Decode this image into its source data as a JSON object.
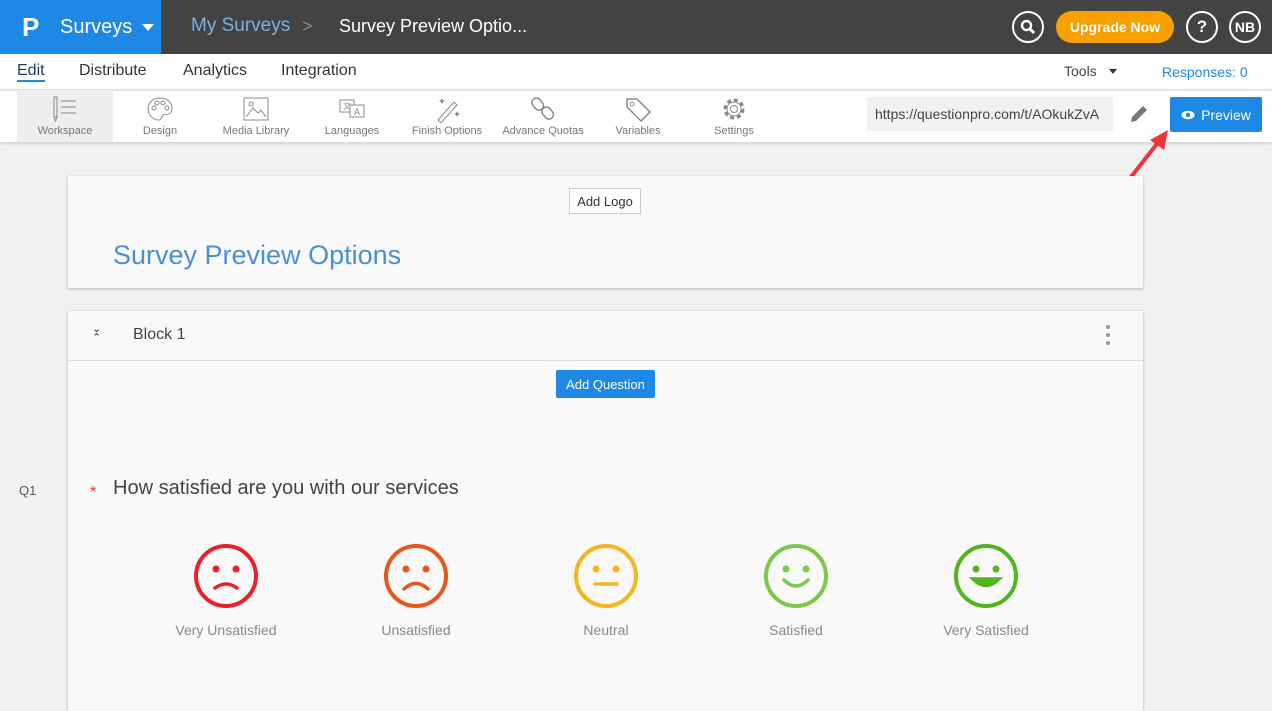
{
  "header": {
    "logo": "P",
    "app": "Surveys",
    "breadcrumb": [
      "My Surveys",
      "Survey Preview Optio..."
    ],
    "upgrade": "Upgrade Now",
    "help": "?",
    "avatar": "NB"
  },
  "nav": {
    "tabs": [
      "Edit",
      "Distribute",
      "Analytics",
      "Integration"
    ],
    "active": "Edit",
    "tools": "Tools",
    "responses": "Responses: 0"
  },
  "toolbar": {
    "items": [
      {
        "label": "Workspace",
        "icon": "workspace-icon"
      },
      {
        "label": "Design",
        "icon": "palette-icon"
      },
      {
        "label": "Media Library",
        "icon": "image-icon"
      },
      {
        "label": "Languages",
        "icon": "translate-icon"
      },
      {
        "label": "Finish Options",
        "icon": "magic-wand-icon"
      },
      {
        "label": "Advance Quotas",
        "icon": "link-icon"
      },
      {
        "label": "Variables",
        "icon": "tag-icon"
      },
      {
        "label": "Settings",
        "icon": "gear-icon"
      }
    ],
    "url": "https://questionpro.com/t/AOkukZvA",
    "preview": "Preview"
  },
  "survey": {
    "add_logo": "Add Logo",
    "title": "Survey Preview Options"
  },
  "block": {
    "title": "Block 1",
    "add_question": "Add Question",
    "question": {
      "number": "Q1",
      "required": "*",
      "text": "How satisfied are you with our services",
      "options": [
        {
          "label": "Very Unsatisfied",
          "color": "#e8202a",
          "mood": "very-sad"
        },
        {
          "label": "Unsatisfied",
          "color": "#e8561c",
          "mood": "sad"
        },
        {
          "label": "Neutral",
          "color": "#f6b51d",
          "mood": "neutral"
        },
        {
          "label": "Satisfied",
          "color": "#7dc84a",
          "mood": "happy"
        },
        {
          "label": "Very Satisfied",
          "color": "#52b41f",
          "mood": "very-happy"
        }
      ]
    }
  },
  "colors": {
    "brand": "#1e88e5",
    "topbar": "#434343",
    "upgrade": "#f7a000",
    "arrow": "#f0353a"
  }
}
